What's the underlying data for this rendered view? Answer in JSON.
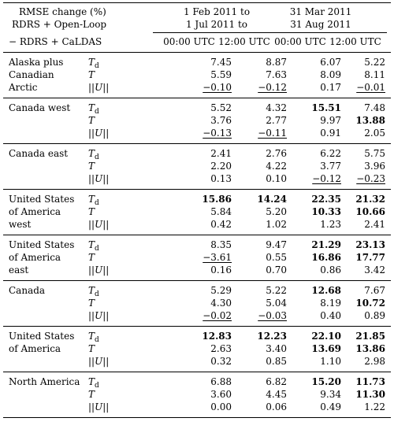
{
  "header": {
    "title_line1": "RMSE change (%)",
    "title_line2": "RDRS + Open-Loop",
    "title_line3": "− RDRS + CaLDAS",
    "period1_line1": "1 Feb 2011 to",
    "period1_line2": "1 Jul 2011 to",
    "period2_line1": "31 Mar 2011",
    "period2_line2": "31 Aug 2011",
    "col_00": "00:00 UTC",
    "col_12": "12:00 UTC"
  },
  "variables": [
    "Td",
    "T",
    "||U||"
  ],
  "groups": [
    {
      "region_lines": [
        "Alaska plus",
        "Canadian",
        "Arctic"
      ],
      "rows": [
        {
          "var": "Td",
          "values": [
            {
              "v": "7.45"
            },
            {
              "v": "8.87"
            },
            {
              "v": "6.07"
            },
            {
              "v": "5.22"
            }
          ]
        },
        {
          "var": "T",
          "values": [
            {
              "v": "5.59"
            },
            {
              "v": "7.63"
            },
            {
              "v": "8.09"
            },
            {
              "v": "8.11"
            }
          ]
        },
        {
          "var": "||U||",
          "values": [
            {
              "v": "−0.10",
              "u": true
            },
            {
              "v": "−0.12",
              "u": true
            },
            {
              "v": "0.17"
            },
            {
              "v": "−0.01",
              "u": true
            }
          ]
        }
      ]
    },
    {
      "region_lines": [
        "Canada west"
      ],
      "rows": [
        {
          "var": "Td",
          "values": [
            {
              "v": "5.52"
            },
            {
              "v": "4.32"
            },
            {
              "v": "15.51",
              "b": true
            },
            {
              "v": "7.48"
            }
          ]
        },
        {
          "var": "T",
          "values": [
            {
              "v": "3.76"
            },
            {
              "v": "2.77"
            },
            {
              "v": "9.97"
            },
            {
              "v": "13.88",
              "b": true
            }
          ]
        },
        {
          "var": "||U||",
          "values": [
            {
              "v": "−0.13",
              "u": true
            },
            {
              "v": "−0.11",
              "u": true
            },
            {
              "v": "0.91"
            },
            {
              "v": "2.05"
            }
          ]
        }
      ]
    },
    {
      "region_lines": [
        "Canada east"
      ],
      "rows": [
        {
          "var": "Td",
          "values": [
            {
              "v": "2.41"
            },
            {
              "v": "2.76"
            },
            {
              "v": "6.22"
            },
            {
              "v": "5.75"
            }
          ]
        },
        {
          "var": "T",
          "values": [
            {
              "v": "2.20"
            },
            {
              "v": "4.22"
            },
            {
              "v": "3.77"
            },
            {
              "v": "3.96"
            }
          ]
        },
        {
          "var": "||U||",
          "values": [
            {
              "v": "0.13"
            },
            {
              "v": "0.10"
            },
            {
              "v": "−0.12",
              "u": true
            },
            {
              "v": "−0.23",
              "u": true
            }
          ]
        }
      ]
    },
    {
      "region_lines": [
        "United States",
        "of America",
        "west"
      ],
      "rows": [
        {
          "var": "Td",
          "values": [
            {
              "v": "15.86",
              "b": true
            },
            {
              "v": "14.24",
              "b": true
            },
            {
              "v": "22.35",
              "b": true
            },
            {
              "v": "21.32",
              "b": true
            }
          ]
        },
        {
          "var": "T",
          "values": [
            {
              "v": "5.84"
            },
            {
              "v": "5.20"
            },
            {
              "v": "10.33",
              "b": true
            },
            {
              "v": "10.66",
              "b": true
            }
          ]
        },
        {
          "var": "||U||",
          "values": [
            {
              "v": "0.42"
            },
            {
              "v": "1.02"
            },
            {
              "v": "1.23"
            },
            {
              "v": "2.41"
            }
          ]
        }
      ]
    },
    {
      "region_lines": [
        "United States",
        "of America",
        "east"
      ],
      "rows": [
        {
          "var": "Td",
          "values": [
            {
              "v": "8.35"
            },
            {
              "v": "9.47"
            },
            {
              "v": "21.29",
              "b": true
            },
            {
              "v": "23.13",
              "b": true
            }
          ]
        },
        {
          "var": "T",
          "values": [
            {
              "v": "−3.61",
              "u": true
            },
            {
              "v": "0.55"
            },
            {
              "v": "16.86",
              "b": true
            },
            {
              "v": "17.77",
              "b": true
            }
          ]
        },
        {
          "var": "||U||",
          "values": [
            {
              "v": "0.16"
            },
            {
              "v": "0.70"
            },
            {
              "v": "0.86"
            },
            {
              "v": "3.42"
            }
          ]
        }
      ]
    },
    {
      "region_lines": [
        "Canada"
      ],
      "rows": [
        {
          "var": "Td",
          "values": [
            {
              "v": "5.29"
            },
            {
              "v": "5.22"
            },
            {
              "v": "12.68",
              "b": true
            },
            {
              "v": "7.67"
            }
          ]
        },
        {
          "var": "T",
          "values": [
            {
              "v": "4.30"
            },
            {
              "v": "5.04"
            },
            {
              "v": "8.19"
            },
            {
              "v": "10.72",
              "b": true
            }
          ]
        },
        {
          "var": "||U||",
          "values": [
            {
              "v": "−0.02",
              "u": true
            },
            {
              "v": "−0.03",
              "u": true
            },
            {
              "v": "0.40"
            },
            {
              "v": "0.89"
            }
          ]
        }
      ]
    },
    {
      "region_lines": [
        "United States",
        "of America"
      ],
      "rows": [
        {
          "var": "Td",
          "values": [
            {
              "v": "12.83",
              "b": true
            },
            {
              "v": "12.23",
              "b": true
            },
            {
              "v": "22.10",
              "b": true
            },
            {
              "v": "21.85",
              "b": true
            }
          ]
        },
        {
          "var": "T",
          "values": [
            {
              "v": "2.63"
            },
            {
              "v": "3.40"
            },
            {
              "v": "13.69",
              "b": true
            },
            {
              "v": "13.86",
              "b": true
            }
          ]
        },
        {
          "var": "||U||",
          "values": [
            {
              "v": "0.32"
            },
            {
              "v": "0.85"
            },
            {
              "v": "1.10"
            },
            {
              "v": "2.98"
            }
          ]
        }
      ]
    },
    {
      "region_lines": [
        "North America"
      ],
      "rows": [
        {
          "var": "Td",
          "values": [
            {
              "v": "6.88"
            },
            {
              "v": "6.82"
            },
            {
              "v": "15.20",
              "b": true
            },
            {
              "v": "11.73",
              "b": true
            }
          ]
        },
        {
          "var": "T",
          "values": [
            {
              "v": "3.60"
            },
            {
              "v": "4.45"
            },
            {
              "v": "9.34"
            },
            {
              "v": "11.30",
              "b": true
            }
          ]
        },
        {
          "var": "||U||",
          "values": [
            {
              "v": "0.00"
            },
            {
              "v": "0.06"
            },
            {
              "v": "0.49"
            },
            {
              "v": "1.22"
            }
          ]
        }
      ]
    }
  ]
}
